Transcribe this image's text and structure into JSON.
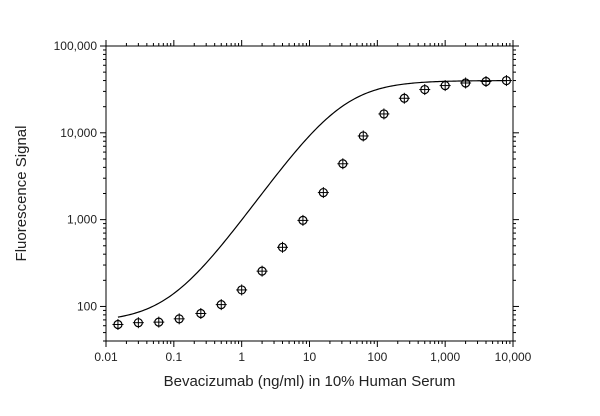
{
  "chart_data": {
    "type": "scatter",
    "title": "",
    "xlabel": "Bevacizumab (ng/ml) in 10% Human Serum",
    "ylabel": "Fluorescence Signal",
    "xscale": "log",
    "yscale": "log",
    "xlim": [
      0.01,
      10000
    ],
    "ylim": [
      40,
      100000
    ],
    "grid": false,
    "legend": "none",
    "x_ticks": [
      {
        "value": 0.01,
        "label": "0.01"
      },
      {
        "value": 0.1,
        "label": "0.1"
      },
      {
        "value": 1,
        "label": "1"
      },
      {
        "value": 10,
        "label": "10"
      },
      {
        "value": 100,
        "label": "100"
      },
      {
        "value": 1000,
        "label": "1,000"
      },
      {
        "value": 10000,
        "label": "10,000"
      }
    ],
    "y_ticks": [
      {
        "value": 100,
        "label": "100"
      },
      {
        "value": 1000,
        "label": "1,000"
      },
      {
        "value": 10000,
        "label": "10,000"
      },
      {
        "value": 100000,
        "label": "100,000"
      }
    ],
    "series": [
      {
        "marker": "circle-with-errorbars",
        "color": "#000000",
        "points": [
          {
            "x": 0.015,
            "y": 62
          },
          {
            "x": 0.03,
            "y": 65
          },
          {
            "x": 0.06,
            "y": 66
          },
          {
            "x": 0.12,
            "y": 72
          },
          {
            "x": 0.25,
            "y": 83
          },
          {
            "x": 0.5,
            "y": 105
          },
          {
            "x": 1,
            "y": 155
          },
          {
            "x": 2,
            "y": 255
          },
          {
            "x": 4,
            "y": 480
          },
          {
            "x": 8,
            "y": 980
          },
          {
            "x": 16,
            "y": 2050
          },
          {
            "x": 31,
            "y": 4400
          },
          {
            "x": 62,
            "y": 9200
          },
          {
            "x": 125,
            "y": 16500
          },
          {
            "x": 250,
            "y": 25000
          },
          {
            "x": 500,
            "y": 31500
          },
          {
            "x": 1000,
            "y": 35000
          },
          {
            "x": 2000,
            "y": 37500
          },
          {
            "x": 4000,
            "y": 39000
          },
          {
            "x": 8000,
            "y": 40000
          }
        ]
      },
      {
        "type": "line",
        "style": "fitted-curve",
        "color": "#000000",
        "fit": {
          "model": "4PL",
          "bottom": 66,
          "top": 40000,
          "ec50": 30,
          "hill": 1.1
        }
      }
    ]
  }
}
